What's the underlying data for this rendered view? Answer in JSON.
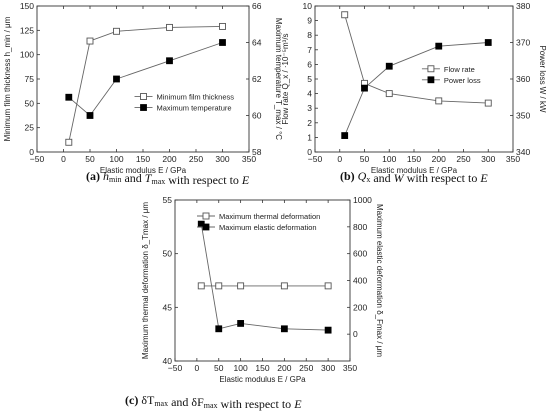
{
  "captions": [
    {
      "lead": "(a) ",
      "parts": [
        {
          "t": "h",
          "it": true
        },
        {
          "t": "min",
          "sub": true
        },
        {
          "t": " and "
        },
        {
          "t": "T",
          "it": true
        },
        {
          "t": "max",
          "sub": true
        },
        {
          "t": " with respect to "
        },
        {
          "t": "E",
          "it": true
        }
      ]
    },
    {
      "lead": "(b) ",
      "parts": [
        {
          "t": "Q",
          "it": true
        },
        {
          "t": "x",
          "sub": true
        },
        {
          "t": " and "
        },
        {
          "t": "W",
          "it": true
        },
        {
          "t": " with respect to "
        },
        {
          "t": "E",
          "it": true
        }
      ]
    },
    {
      "lead": "(c) ",
      "parts": [
        {
          "t": "δT"
        },
        {
          "t": "max",
          "sub": true
        },
        {
          "t": " and δF"
        },
        {
          "t": "max",
          "sub": true
        },
        {
          "t": " with respect to "
        },
        {
          "t": "E",
          "it": true
        }
      ]
    }
  ],
  "chart_data": [
    {
      "type": "line",
      "panel": "a",
      "xlabel": "Elastic modulus E / GPa",
      "ylabel": "Minimum film thickness h_min / μm",
      "y2label": "Maximum temperature T_max / °C",
      "xlim": [
        -50,
        350
      ],
      "ylim": [
        0,
        150
      ],
      "y2lim": [
        58,
        66
      ],
      "xticks": [
        -50,
        0,
        50,
        100,
        150,
        200,
        250,
        300,
        350
      ],
      "yticks": [
        0,
        25,
        50,
        75,
        100,
        125,
        150
      ],
      "y2ticks": [
        58,
        60,
        62,
        64,
        66
      ],
      "grid": false,
      "legend_position": "center-right",
      "series": [
        {
          "name": "Minimum film thickness",
          "axis": "left",
          "marker": "open-square",
          "x": [
            10,
            50,
            100,
            200,
            300
          ],
          "y": [
            10,
            114,
            124,
            128,
            129
          ]
        },
        {
          "name": "Maximum temperature",
          "axis": "right",
          "marker": "filled-square",
          "x": [
            10,
            50,
            100,
            200,
            300
          ],
          "y": [
            61.0,
            60.0,
            62.0,
            63.0,
            64.0
          ]
        }
      ]
    },
    {
      "type": "line",
      "panel": "b",
      "xlabel": "Elastic modulus E / GPa",
      "ylabel": "Flow rate Q_x / ·10⁻⁵m³/s",
      "y2label": "Power loss W / kW",
      "xlim": [
        -50,
        350
      ],
      "ylim": [
        0,
        10
      ],
      "y2lim": [
        340,
        380
      ],
      "xticks": [
        -50,
        0,
        50,
        100,
        150,
        200,
        250,
        300,
        350
      ],
      "yticks": [
        0,
        1,
        2,
        3,
        4,
        5,
        6,
        7,
        8,
        9,
        10
      ],
      "y2ticks": [
        340,
        350,
        360,
        370,
        380
      ],
      "grid": false,
      "legend_position": "center-right",
      "series": [
        {
          "name": "Flow rate",
          "axis": "left",
          "marker": "open-square",
          "x": [
            10,
            50,
            100,
            200,
            300
          ],
          "y": [
            9.4,
            4.7,
            4.0,
            3.5,
            3.35
          ]
        },
        {
          "name": "Power loss",
          "axis": "right",
          "marker": "filled-square",
          "x": [
            10,
            50,
            100,
            200,
            300
          ],
          "y": [
            344.5,
            357.5,
            363.5,
            369,
            370
          ]
        }
      ]
    },
    {
      "type": "line",
      "panel": "c",
      "xlabel": "Elastic modulus E / GPa",
      "ylabel": "Maximum thermal deformation δ_Tmax / μm",
      "y2label": "Maximum elastic deformation δ_Fmax / μm",
      "xlim": [
        -50,
        350
      ],
      "ylim": [
        40,
        55
      ],
      "y2lim": [
        -200,
        1000
      ],
      "xticks": [
        -50,
        0,
        50,
        100,
        150,
        200,
        250,
        300,
        350
      ],
      "yticks": [
        40,
        45,
        50,
        55
      ],
      "y2ticks": [
        0,
        200,
        400,
        600,
        800,
        1000
      ],
      "grid": false,
      "legend_position": "top-right",
      "series": [
        {
          "name": "Maximum thermal deformation",
          "axis": "left",
          "marker": "open-square",
          "x": [
            10,
            50,
            100,
            200,
            300
          ],
          "y": [
            47,
            47,
            47,
            47,
            47
          ]
        },
        {
          "name": "Maximum elastic deformation",
          "axis": "right",
          "marker": "filled-square",
          "x": [
            10,
            50,
            100,
            200,
            300
          ],
          "y": [
            820,
            40,
            80,
            40,
            30
          ]
        }
      ]
    }
  ]
}
